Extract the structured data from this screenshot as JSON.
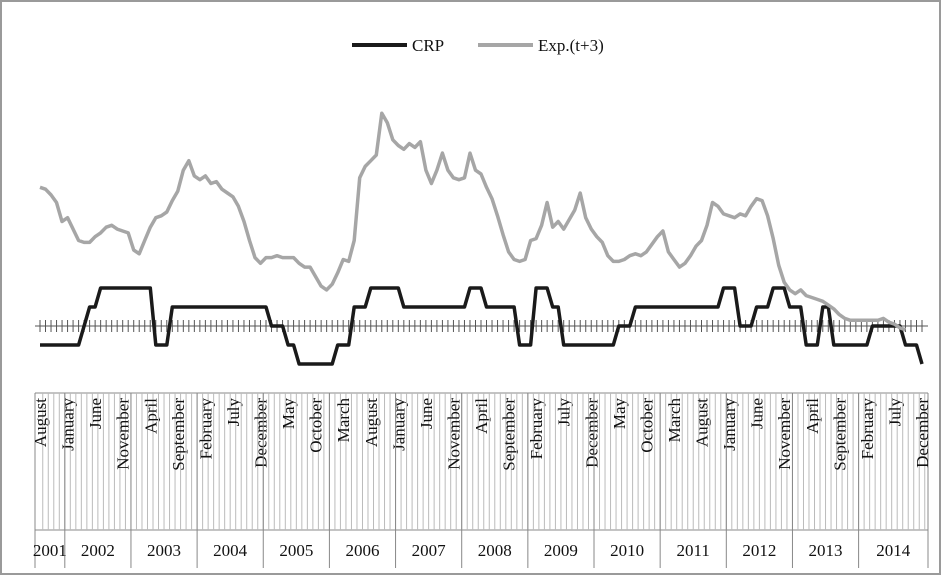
{
  "chart_data": {
    "type": "line",
    "categories": [
      "August",
      null,
      null,
      null,
      null,
      "January",
      null,
      null,
      null,
      null,
      "June",
      null,
      null,
      null,
      null,
      "November",
      null,
      null,
      null,
      null,
      "April",
      null,
      null,
      null,
      null,
      "September",
      null,
      null,
      null,
      null,
      "February",
      null,
      null,
      null,
      null,
      "July",
      null,
      null,
      null,
      null,
      "December",
      null,
      null,
      null,
      null,
      "May",
      null,
      null,
      null,
      null,
      "October",
      null,
      null,
      null,
      null,
      "March",
      null,
      null,
      null,
      null,
      "August",
      null,
      null,
      null,
      null,
      "January",
      null,
      null,
      null,
      null,
      "June",
      null,
      null,
      null,
      null,
      "November",
      null,
      null,
      null,
      null,
      "April",
      null,
      null,
      null,
      null,
      "September",
      null,
      null,
      null,
      null,
      "February",
      null,
      null,
      null,
      null,
      "July",
      null,
      null,
      null,
      null,
      "December",
      null,
      null,
      null,
      null,
      "May",
      null,
      null,
      null,
      null,
      "October",
      null,
      null,
      null,
      null,
      "March",
      null,
      null,
      null,
      null,
      "August",
      null,
      null,
      null,
      null,
      "January",
      null,
      null,
      null,
      null,
      "June",
      null,
      null,
      null,
      null,
      "November",
      null,
      null,
      null,
      null,
      "April",
      null,
      null,
      null,
      null,
      "September",
      null,
      null,
      null,
      null,
      "February",
      null,
      null,
      null,
      null,
      "July",
      null,
      null,
      null,
      null,
      "December"
    ],
    "years": [
      "2001",
      "2002",
      "2003",
      "2004",
      "2005",
      "2006",
      "2007",
      "2008",
      "2009",
      "2010",
      "2011",
      "2012",
      "2013",
      "2014"
    ],
    "ylim": [
      -3,
      15
    ],
    "legend": "top",
    "series": [
      {
        "name": "CRP",
        "color": "#1a1a1a",
        "values": [
          -1,
          -1,
          -1,
          -1,
          -1,
          -1,
          -1,
          -1,
          0,
          1,
          1,
          2,
          2,
          2,
          2,
          2,
          2,
          2,
          2,
          2,
          2,
          -1,
          -1,
          -1,
          1,
          1,
          1,
          1,
          1,
          1,
          1,
          1,
          1,
          1,
          1,
          1,
          1,
          1,
          1,
          1,
          1,
          1,
          0,
          0,
          0,
          -1,
          -1,
          -2,
          -2,
          -2,
          -2,
          -2,
          -2,
          -2,
          -1,
          -1,
          -1,
          1,
          1,
          1,
          2,
          2,
          2,
          2,
          2,
          2,
          1,
          1,
          1,
          1,
          1,
          1,
          1,
          1,
          1,
          1,
          1,
          1,
          2,
          2,
          2,
          1,
          1,
          1,
          1,
          1,
          1,
          -1,
          -1,
          -1,
          2,
          2,
          2,
          1,
          1,
          -1,
          -1,
          -1,
          -1,
          -1,
          -1,
          -1,
          -1,
          -1,
          -1,
          0,
          0,
          0,
          1,
          1,
          1,
          1,
          1,
          1,
          1,
          1,
          1,
          1,
          1,
          1,
          1,
          1,
          1,
          1,
          2,
          2,
          2,
          0,
          0,
          0,
          1,
          1,
          1,
          2,
          2,
          2,
          1,
          1,
          1,
          -1,
          -1,
          -1,
          1,
          1,
          -1,
          -1,
          -1,
          -1,
          -1,
          -1,
          -1,
          0,
          0,
          0,
          0,
          0,
          0,
          -1,
          -1,
          -1,
          -2
        ]
      },
      {
        "name": "Exp.(t+3)",
        "color": "#a6a6a6",
        "values": [
          7.3,
          7.2,
          6.9,
          6.5,
          5.5,
          5.7,
          5.1,
          4.5,
          4.4,
          4.4,
          4.7,
          4.9,
          5.2,
          5.3,
          5.1,
          5.0,
          4.9,
          4.0,
          3.8,
          4.5,
          5.2,
          5.7,
          5.8,
          6.0,
          6.6,
          7.1,
          8.2,
          8.7,
          7.9,
          7.7,
          7.9,
          7.5,
          7.6,
          7.2,
          7.0,
          6.8,
          6.3,
          5.5,
          4.5,
          3.6,
          3.3,
          3.6,
          3.6,
          3.7,
          3.6,
          3.6,
          3.6,
          3.3,
          3.1,
          3.1,
          2.6,
          2.1,
          1.9,
          2.2,
          2.8,
          3.5,
          3.4,
          4.5,
          7.8,
          8.4,
          8.7,
          9.0,
          11.2,
          10.7,
          9.8,
          9.5,
          9.3,
          9.6,
          9.4,
          9.7,
          8.2,
          7.5,
          8.2,
          9.1,
          8.2,
          7.8,
          7.7,
          7.8,
          9.1,
          8.2,
          8.0,
          7.3,
          6.7,
          5.8,
          4.8,
          3.9,
          3.5,
          3.4,
          3.5,
          4.5,
          4.6,
          5.3,
          6.5,
          5.2,
          5.5,
          5.1,
          5.6,
          6.1,
          7.0,
          5.7,
          5.1,
          4.7,
          4.4,
          3.7,
          3.4,
          3.4,
          3.5,
          3.7,
          3.8,
          3.7,
          3.9,
          4.3,
          4.7,
          5.0,
          3.9,
          3.5,
          3.1,
          3.3,
          3.7,
          4.2,
          4.5,
          5.3,
          6.5,
          6.3,
          5.9,
          5.8,
          5.7,
          5.9,
          5.8,
          6.3,
          6.7,
          6.6,
          5.8,
          4.6,
          3.2,
          2.3,
          1.9,
          1.7,
          1.9,
          1.6,
          1.5,
          1.4,
          1.3,
          1.1,
          0.9,
          0.6,
          0.4,
          0.3,
          0.3,
          0.3,
          0.3,
          0.3,
          0.3,
          0.4,
          0.2,
          0.1,
          -0.1,
          -0.2,
          null,
          null,
          null
        ]
      }
    ]
  }
}
